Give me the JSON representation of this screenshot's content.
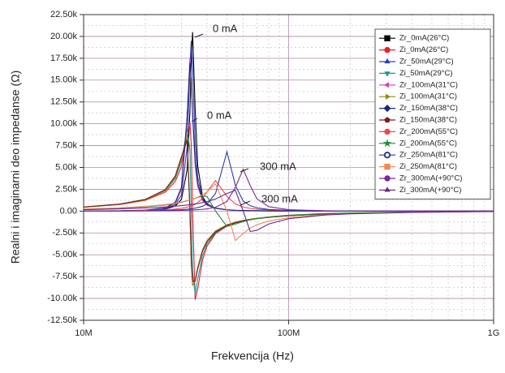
{
  "chart_data": {
    "type": "line",
    "xlabel": "Frekvencija (Hz)",
    "ylabel": "Realni i imaginarni deo impedanse (Ω)",
    "xscale": "log",
    "xlim": [
      10000000,
      1000000000
    ],
    "xticks": [
      {
        "value": 10000000,
        "label": "10M"
      },
      {
        "value": 100000000,
        "label": "100M"
      },
      {
        "value": 1000000000,
        "label": "1G"
      }
    ],
    "ylim": [
      -12500,
      22500
    ],
    "yticks": [
      {
        "value": 22500,
        "label": "22.50k"
      },
      {
        "value": 20000,
        "label": "20.00k"
      },
      {
        "value": 17500,
        "label": "17.50k"
      },
      {
        "value": 15000,
        "label": "15.00k"
      },
      {
        "value": 12500,
        "label": "12.50k"
      },
      {
        "value": 10000,
        "label": "10.00k"
      },
      {
        "value": 7500,
        "label": "7.50k"
      },
      {
        "value": 5000,
        "label": "5.00k"
      },
      {
        "value": 2500,
        "label": "2.50k"
      },
      {
        "value": 0,
        "label": "0.00"
      },
      {
        "value": -2500,
        "label": "-2.50k"
      },
      {
        "value": -5000,
        "label": "-5.00k"
      },
      {
        "value": -7500,
        "label": "-7.50k"
      },
      {
        "value": -10000,
        "label": "-10.00k"
      },
      {
        "value": -12500,
        "label": "-12.50k"
      }
    ],
    "grid": true,
    "legend": "upper right",
    "annotations": [
      "0 mA",
      "0 mA",
      "300 mA",
      "300 mA"
    ],
    "x": [
      10000000,
      15000000,
      20000000,
      25000000,
      28000000,
      30000000,
      32000000,
      33000000,
      33500000,
      34000000,
      35000000,
      36000000,
      38000000,
      40000000,
      44000000,
      50000000,
      55000000,
      60000000,
      65000000,
      70000000,
      80000000,
      100000000,
      150000000,
      200000000,
      400000000,
      600000000,
      800000000,
      1000000000
    ],
    "series": [
      {
        "name": "Zr_0mA(26°C)",
        "color": "#000000",
        "marker": "square",
        "values": [
          9,
          27,
          73,
          230,
          582,
          1349,
          4745,
          11370,
          17126,
          20500,
          11668,
          5196,
          1680,
          823,
          330,
          144,
          91,
          63,
          47,
          37,
          25,
          13,
          5,
          3,
          1,
          0,
          0,
          0
        ]
      },
      {
        "name": "Zi_0mA(26°C)",
        "color": "#e8202a",
        "marker": "circle",
        "values": [
          440,
          748,
          1227,
          2160,
          3407,
          5085,
          8637,
          10188,
          7604,
          0,
          -10151,
          -8917,
          -5612,
          -4026,
          -2581,
          -1718,
          -1360,
          -1139,
          -982,
          -868,
          -708,
          -526,
          -326,
          -239,
          -117,
          -78,
          -58,
          -46
        ]
      },
      {
        "name": "Zr_50mA(29°C)",
        "color": "#2b3fc4",
        "marker": "triangle-up",
        "values": [
          11,
          31,
          85,
          278,
          739,
          1840,
          7361,
          16540,
          19500,
          16638,
          7775,
          3851,
          1444,
          753,
          321,
          146,
          92,
          65,
          49,
          38,
          26,
          14,
          5,
          3,
          1,
          0,
          0,
          0
        ]
      },
      {
        "name": "Zi_50mA(29°C)",
        "color": "#1a9a9a",
        "marker": "triangle-down",
        "values": [
          457,
          778,
          1286,
          2311,
          3723,
          5703,
          9452,
          6996,
          0,
          -6888,
          -9548,
          -7763,
          -5113,
          -3758,
          -2483,
          -1683,
          -1337,
          -1124,
          -976,
          -862,
          -706,
          -525,
          -327,
          -240,
          -117,
          -78,
          -58,
          -47
        ]
      },
      {
        "name": "Zr_100mA(31°C)",
        "color": "#d43fc0",
        "marker": "triangle-left",
        "values": [
          12,
          34,
          95,
          322,
          902,
          2444,
          10664,
          17500,
          15178,
          10924,
          5240,
          2855,
          1204,
          665,
          299,
          141,
          90,
          64,
          48,
          38,
          25,
          14,
          6,
          3,
          1,
          0,
          0,
          0
        ]
      },
      {
        "name": "Zi_100mA(31°C)",
        "color": "#8a8a1a",
        "marker": "triangle-right",
        "values": [
          449,
          769,
          1283,
          2352,
          3870,
          6061,
          8531,
          0,
          -5935,
          -8477,
          -8017,
          -6466,
          -4431,
          -3347,
          -2268,
          -1566,
          -1255,
          -1057,
          -919,
          -814,
          -668,
          -498,
          -311,
          -228,
          -112,
          -74,
          -56,
          -44
        ]
      },
      {
        "name": "Zr_150mA(38°C)",
        "color": "#1c2a7a",
        "marker": "diamond",
        "values": [
          13,
          39,
          108,
          365,
          1018,
          2724,
          10996,
          17000,
          15044,
          11236,
          5678,
          3166,
          1354,
          756,
          340,
          160,
          103,
          73,
          55,
          43,
          29,
          16,
          6,
          3,
          1,
          0,
          0,
          0
        ]
      },
      {
        "name": "Zi_150mA(38°C)",
        "color": "#7a1a1a",
        "marker": "pentagon",
        "values": [
          473,
          811,
          1348,
          2462,
          4031,
          6239,
          8126,
          0,
          -5431,
          -8045,
          -8017,
          -6616,
          -4602,
          -3506,
          -2380,
          -1643,
          -1318,
          -1112,
          -969,
          -857,
          -702,
          -524,
          -327,
          -240,
          -118,
          -78,
          -59,
          -47
        ]
      },
      {
        "name": "Zr_200mA(55°C)",
        "color": "#f04848",
        "marker": "circle",
        "values": [
          13,
          32,
          70,
          148,
          233,
          322,
          454,
          543,
          596,
          655,
          792,
          970,
          1464,
          2210,
          3500,
          1707,
          825,
          476,
          311,
          222,
          131,
          64,
          22,
          12,
          3,
          1,
          1,
          0
        ]
      },
      {
        "name": "Zi_200mA(55°C)",
        "color": "#1e8a3a",
        "marker": "star",
        "values": [
          209,
          335,
          492,
          704,
          873,
          1012,
          1176,
          1266,
          1318,
          1363,
          1465,
          1571,
          1728,
          1688,
          0,
          -1750,
          -1486,
          -1200,
          -996,
          -853,
          -665,
          -469,
          -279,
          -202,
          -97,
          -64,
          -48,
          -39
        ]
      },
      {
        "name": "Zr_250mA(81°C)",
        "color": "#2a3aa0",
        "marker": "circle-half",
        "values": [
          8,
          21,
          43,
          83,
          123,
          162,
          215,
          249,
          268,
          289,
          338,
          398,
          561,
          820,
          2018,
          6800,
          2940,
          1164,
          610,
          380,
          193,
          83,
          26,
          13,
          3,
          1,
          1,
          0
        ]
      },
      {
        "name": "Zi_250mA(81°C)",
        "color": "#f08a5a",
        "marker": "square",
        "values": [
          236,
          373,
          536,
          746,
          908,
          1036,
          1191,
          1278,
          1324,
          1372,
          1478,
          1595,
          1871,
          2215,
          3107,
          0,
          -3369,
          -2562,
          -1944,
          -1561,
          -1130,
          -746,
          -423,
          -302,
          -144,
          -95,
          -71,
          -57
        ]
      },
      {
        "name": "Zr_300mA(+90°C)",
        "color": "#7a2a9a",
        "marker": "circle",
        "values": [
          6,
          14,
          27,
          48,
          67,
          84,
          104,
          117,
          123,
          130,
          146,
          163,
          205,
          261,
          440,
          1101,
          2729,
          4800,
          2923,
          1412,
          505,
          163,
          43,
          21,
          5,
          2,
          1,
          1
        ]
      },
      {
        "name": "Zi_300mA(+90°C)",
        "color": "#6a2a8a",
        "marker": "triangle-up",
        "values": [
          165,
          255,
          358,
          480,
          565,
          629,
          700,
          739,
          760,
          779,
          824,
          870,
          970,
          1088,
          1385,
          2017,
          2377,
          0,
          -2339,
          -2188,
          -1475,
          -870,
          -452,
          -315,
          -147,
          -97,
          -72,
          -58
        ]
      }
    ]
  }
}
